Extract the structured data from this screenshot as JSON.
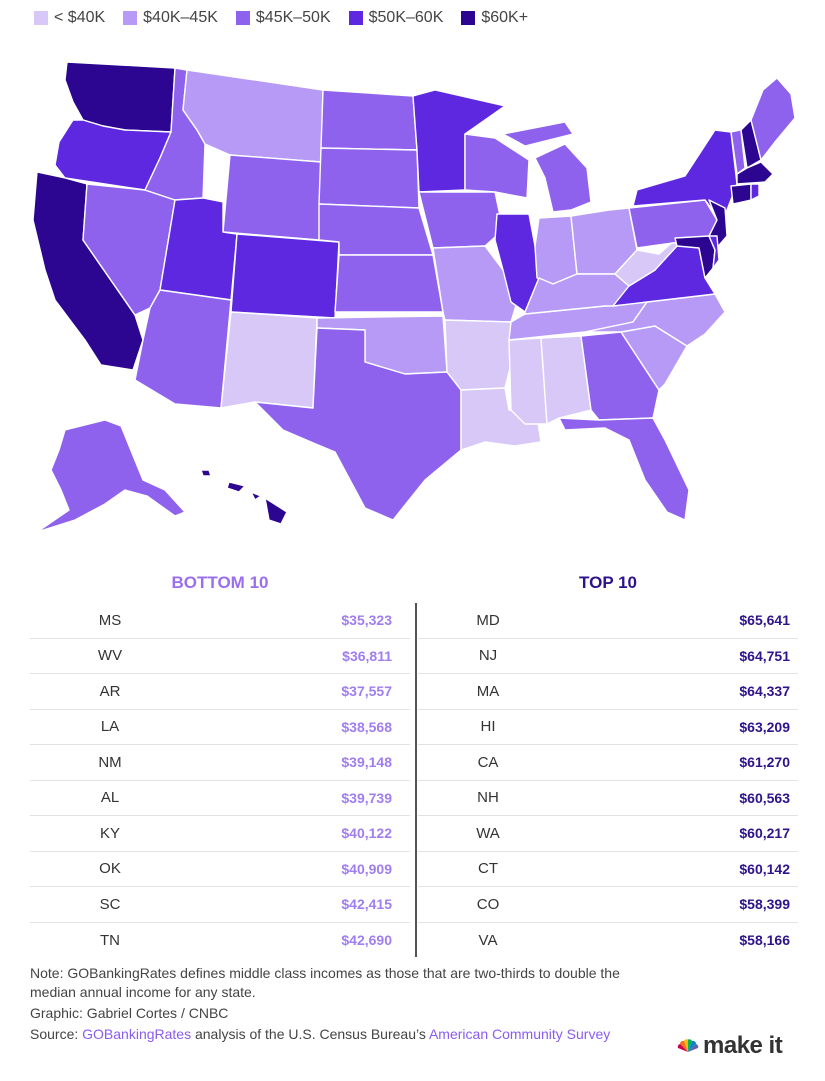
{
  "legend": [
    {
      "label": "< $40K",
      "color": "#d7c8f8"
    },
    {
      "label": "$40K–45K",
      "color": "#b69af5"
    },
    {
      "label": "$45K–50K",
      "color": "#8f62ee"
    },
    {
      "label": "$50K–60K",
      "color": "#5d28df"
    },
    {
      "label": "$60K+",
      "color": "#2c0590"
    }
  ],
  "colors": {
    "lt40": "#d7c8f8",
    "k40_45": "#b69af5",
    "k45_50": "#8f62ee",
    "k50_60": "#5d28df",
    "k60p": "#2c0590"
  },
  "bottom10": {
    "title": "BOTTOM 10",
    "rows": [
      {
        "state": "MS",
        "value": "$35,323"
      },
      {
        "state": "WV",
        "value": "$36,811"
      },
      {
        "state": "AR",
        "value": "$37,557"
      },
      {
        "state": "LA",
        "value": "$38,568"
      },
      {
        "state": "NM",
        "value": "$39,148"
      },
      {
        "state": "AL",
        "value": "$39,739"
      },
      {
        "state": "KY",
        "value": "$40,122"
      },
      {
        "state": "OK",
        "value": "$40,909"
      },
      {
        "state": "SC",
        "value": "$42,415"
      },
      {
        "state": "TN",
        "value": "$42,690"
      }
    ]
  },
  "top10": {
    "title": "TOP 10",
    "rows": [
      {
        "state": "MD",
        "value": "$65,641"
      },
      {
        "state": "NJ",
        "value": "$64,751"
      },
      {
        "state": "MA",
        "value": "$64,337"
      },
      {
        "state": "HI",
        "value": "$63,209"
      },
      {
        "state": "CA",
        "value": "$61,270"
      },
      {
        "state": "NH",
        "value": "$60,563"
      },
      {
        "state": "WA",
        "value": "$60,217"
      },
      {
        "state": "CT",
        "value": "$60,142"
      },
      {
        "state": "CO",
        "value": "$58,399"
      },
      {
        "state": "VA",
        "value": "$58,166"
      }
    ]
  },
  "notes": {
    "note": "Note: GOBankingRates defines middle class incomes as those that are two-thirds to double the median annual income for any state.",
    "graphic": "Graphic: Gabriel Cortes / CNBC",
    "source_prefix": "Source: ",
    "source_link1": "GOBankingRates",
    "source_mid": " analysis of the U.S. Census Bureau’s ",
    "source_link2": "American Community Survey"
  },
  "logo": {
    "text": "make it",
    "network": "CNBC"
  }
}
